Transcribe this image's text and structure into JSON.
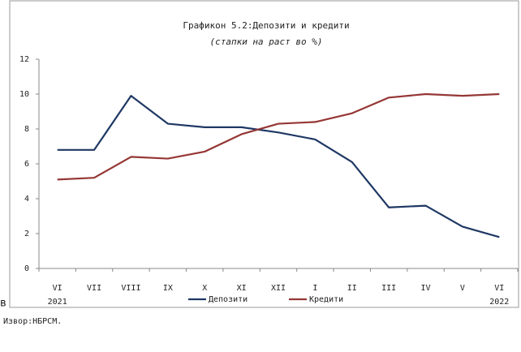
{
  "chart_data": {
    "type": "line",
    "title": "Графикон 5.2:Депозити и кредити",
    "subtitle": "(стапки на раст во %)",
    "categories": [
      "VI",
      "VII",
      "VIII",
      "IX",
      "X",
      "XI",
      "XII",
      "I",
      "II",
      "III",
      "IV",
      "V",
      "VI"
    ],
    "year_labels": [
      "2021",
      "2022"
    ],
    "series": [
      {
        "name": "Депозити",
        "color": "#1f3864",
        "values": [
          6.8,
          6.8,
          9.9,
          8.3,
          8.1,
          8.1,
          7.8,
          7.4,
          6.1,
          3.5,
          3.6,
          2.4,
          1.8
        ]
      },
      {
        "name": "Кредити",
        "color": "#953735",
        "values": [
          5.1,
          5.2,
          6.4,
          6.3,
          6.7,
          7.7,
          8.3,
          8.4,
          8.9,
          9.8,
          10.0,
          9.9,
          10.0
        ]
      }
    ],
    "ylim": [
      0,
      12
    ],
    "yticks": [
      0,
      2,
      4,
      6,
      8,
      10,
      12
    ],
    "grid": false,
    "legend": "bottom"
  },
  "document": {
    "fragment": "в",
    "source": "Извор:НБРСМ."
  }
}
